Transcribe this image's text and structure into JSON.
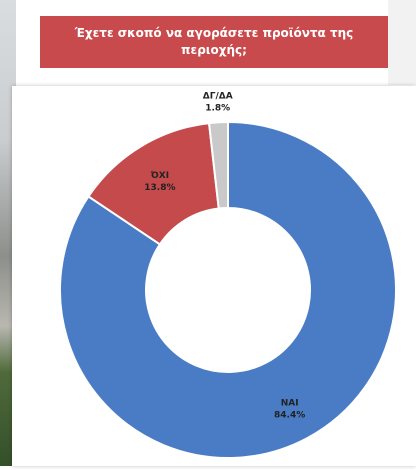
{
  "chart_data": {
    "type": "pie",
    "donut": true,
    "title": "Έχετε σκοπό να αγοράσετε προϊόντα της περιοχής;",
    "slices": [
      {
        "label": "ΝΑΙ",
        "value": 84.4,
        "value_label": "84.4%",
        "color": "#4a7cc6"
      },
      {
        "label": "ΌΧΙ",
        "value": 13.8,
        "value_label": "13.8%",
        "color": "#c44a4c"
      },
      {
        "label": "ΔΓ/ΔΑ",
        "value": 1.8,
        "value_label": "1.8%",
        "color": "#c9c9c9"
      }
    ]
  }
}
